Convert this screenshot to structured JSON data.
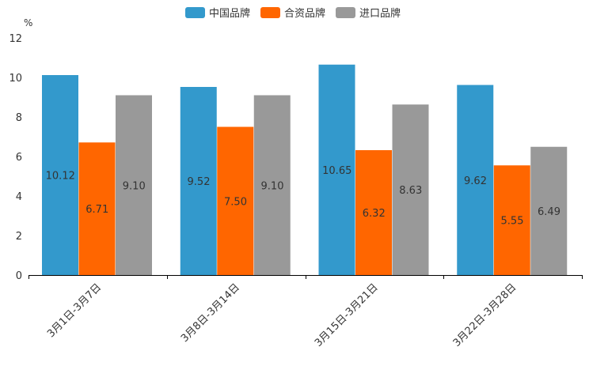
{
  "chart_data": {
    "type": "bar",
    "title": "",
    "xlabel": "",
    "ylabel": "%",
    "ylim": [
      0,
      12
    ],
    "yticks": [
      0,
      2,
      4,
      6,
      8,
      10,
      12
    ],
    "categories": [
      "3月1日-3月7日",
      "3月8日-3月14日",
      "3月15日-3月21日",
      "3月22日-3月28日"
    ],
    "series": [
      {
        "name": "中国品牌",
        "color": "#3399cc",
        "values": [
          10.12,
          9.52,
          10.65,
          9.62
        ],
        "labels": [
          "10.12",
          "9.52",
          "10.65",
          "9.62"
        ]
      },
      {
        "name": "合资品牌",
        "color": "#ff6600",
        "values": [
          6.71,
          7.5,
          6.32,
          5.55
        ],
        "labels": [
          "6.71",
          "7.50",
          "6.32",
          "5.55"
        ]
      },
      {
        "name": "进口品牌",
        "color": "#999999",
        "values": [
          9.1,
          9.1,
          8.63,
          6.49
        ],
        "labels": [
          "9.10",
          "9.10",
          "8.63",
          "6.49"
        ]
      }
    ],
    "legend_position": "top-center",
    "grid": false
  }
}
